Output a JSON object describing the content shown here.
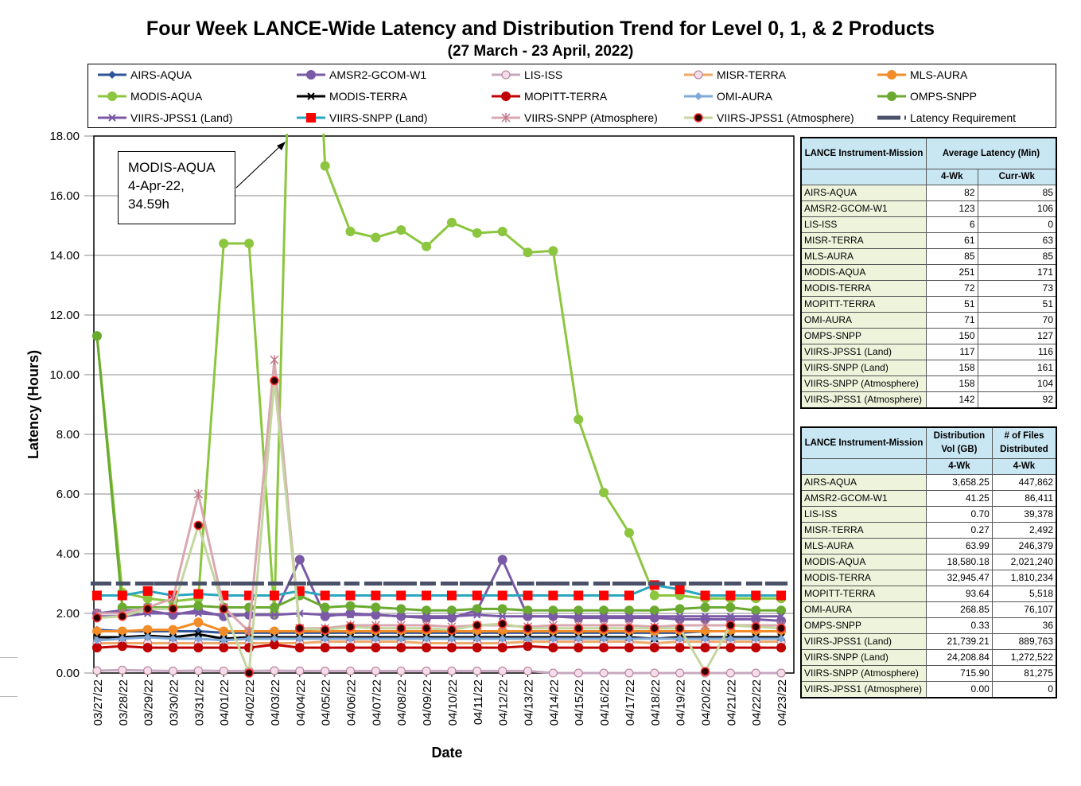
{
  "title": "Four Week LANCE-Wide Latency and Distribution Trend for Level 0, 1, & 2 Products",
  "subtitle": "(27  March   - 23  April,  2022)",
  "callout": {
    "line1": "MODIS-AQUA",
    "line2": "4-Apr-22,",
    "line3": "34.59h"
  },
  "chart_data": {
    "type": "line",
    "xlabel": "Date",
    "ylabel": "Latency (Hours)",
    "ylim": [
      0,
      18
    ],
    "yticks": [
      "0.00",
      "2.00",
      "4.00",
      "6.00",
      "8.00",
      "10.00",
      "12.00",
      "14.00",
      "16.00",
      "18.00"
    ],
    "grid": "horizontal",
    "legend_placement": "top",
    "categories": [
      "03/27/22",
      "03/28/22",
      "03/29/22",
      "03/30/22",
      "03/31/22",
      "04/01/22",
      "04/02/22",
      "04/03/22",
      "04/04/22",
      "04/05/22",
      "04/06/22",
      "04/07/22",
      "04/08/22",
      "04/09/22",
      "04/10/22",
      "04/11/22",
      "04/12/22",
      "04/13/22",
      "04/14/22",
      "04/15/22",
      "04/16/22",
      "04/17/22",
      "04/18/22",
      "04/19/22",
      "04/20/22",
      "04/21/22",
      "04/22/22",
      "04/23/22"
    ],
    "series": [
      {
        "name": "AIRS-AQUA",
        "color": "#2e5597",
        "marker": "diamond",
        "values": [
          1.45,
          1.4,
          1.4,
          1.4,
          1.4,
          1.35,
          1.35,
          1.35,
          1.35,
          1.35,
          1.35,
          1.35,
          1.35,
          1.35,
          1.35,
          1.35,
          1.35,
          1.35,
          1.35,
          1.35,
          1.35,
          1.35,
          1.35,
          1.35,
          1.4,
          1.4,
          1.4,
          1.4
        ]
      },
      {
        "name": "AMSR2-GCOM-W1",
        "color": "#7a5aa6",
        "marker": "circle",
        "values": [
          2.0,
          2.1,
          2.1,
          1.95,
          2.1,
          1.9,
          1.95,
          1.95,
          3.8,
          1.9,
          2.0,
          1.95,
          1.9,
          1.85,
          1.85,
          2.1,
          3.8,
          1.9,
          1.9,
          1.85,
          1.85,
          1.85,
          1.85,
          1.8,
          1.8,
          1.8,
          1.8,
          1.75
        ]
      },
      {
        "name": "LIS-ISS",
        "color": "#c8a8c0",
        "marker": "circle-open",
        "values": [
          0.08,
          0.1,
          0.08,
          0.07,
          0.08,
          0.07,
          0.07,
          0.08,
          0.07,
          0.07,
          0.07,
          0.07,
          0.07,
          0.07,
          0.07,
          0.07,
          0.07,
          0.07,
          0.0,
          0.0,
          0.0,
          0.0,
          0.0,
          0.0,
          0.0,
          0.0,
          0.0,
          0.0
        ]
      },
      {
        "name": "MISR-TERRA",
        "color": "#f0a868",
        "marker": "circle-open",
        "values": [
          1.0,
          1.0,
          1.0,
          1.0,
          1.0,
          1.0,
          1.0,
          1.0,
          1.0,
          1.05,
          1.05,
          1.05,
          1.05,
          1.0,
          1.0,
          1.0,
          1.0,
          1.05,
          1.05,
          1.05,
          1.05,
          1.05,
          1.0,
          1.05,
          1.05,
          1.05,
          1.05,
          1.05
        ]
      },
      {
        "name": "MLS-AURA",
        "color": "#f28c28",
        "marker": "circle",
        "values": [
          1.4,
          1.4,
          1.45,
          1.45,
          1.7,
          1.4,
          1.4,
          1.4,
          1.4,
          1.4,
          1.4,
          1.4,
          1.4,
          1.4,
          1.4,
          1.4,
          1.4,
          1.4,
          1.4,
          1.4,
          1.4,
          1.4,
          1.4,
          1.4,
          1.4,
          1.4,
          1.4,
          1.4
        ]
      },
      {
        "name": "MODIS-AQUA",
        "color": "#8cc63f",
        "marker": "circle",
        "values": [
          11.3,
          2.7,
          2.5,
          2.4,
          2.5,
          14.4,
          14.4,
          2.0,
          34.59,
          17.0,
          14.8,
          14.6,
          14.85,
          14.3,
          15.1,
          14.75,
          14.8,
          14.1,
          14.15,
          8.5,
          6.05,
          4.7,
          2.6,
          2.6,
          2.5,
          2.5,
          2.5,
          2.5
        ]
      },
      {
        "name": "MODIS-TERRA",
        "color": "#000000",
        "marker": "cross",
        "values": [
          1.2,
          1.2,
          1.25,
          1.2,
          1.3,
          1.15,
          1.2,
          1.2,
          1.2,
          1.2,
          1.2,
          1.2,
          1.2,
          1.2,
          1.2,
          1.2,
          1.2,
          1.2,
          1.2,
          1.2,
          1.2,
          1.2,
          1.15,
          1.2,
          1.2,
          1.2,
          1.2,
          1.2
        ]
      },
      {
        "name": "MOPITT-TERRA",
        "color": "#c00000",
        "marker": "circle",
        "values": [
          0.85,
          0.9,
          0.85,
          0.85,
          0.85,
          0.85,
          0.85,
          0.95,
          0.85,
          0.85,
          0.85,
          0.85,
          0.85,
          0.85,
          0.85,
          0.85,
          0.85,
          0.9,
          0.85,
          0.85,
          0.85,
          0.85,
          0.85,
          0.85,
          0.85,
          0.85,
          0.85,
          0.85
        ]
      },
      {
        "name": "OMI-AURA",
        "color": "#7fa8d8",
        "marker": "diamond",
        "values": [
          1.1,
          1.15,
          1.2,
          1.15,
          1.15,
          1.1,
          1.15,
          1.15,
          1.15,
          1.15,
          1.15,
          1.15,
          1.15,
          1.15,
          1.15,
          1.15,
          1.15,
          1.15,
          1.15,
          1.15,
          1.15,
          1.15,
          1.15,
          1.15,
          1.15,
          1.15,
          1.15,
          1.15
        ]
      },
      {
        "name": "OMPS-SNPP",
        "color": "#6aaa30",
        "marker": "circle",
        "values": [
          11.3,
          2.2,
          2.2,
          2.2,
          2.25,
          2.2,
          2.2,
          2.2,
          2.6,
          2.2,
          2.25,
          2.2,
          2.15,
          2.1,
          2.1,
          2.15,
          2.15,
          2.1,
          2.1,
          2.1,
          2.1,
          2.1,
          2.1,
          2.15,
          2.2,
          2.2,
          2.1,
          2.1
        ]
      },
      {
        "name": "VIIRS-JPSS1 (Land)",
        "color": "#7a5aa6",
        "marker": "cross",
        "values": [
          1.9,
          1.9,
          2.0,
          2.0,
          2.0,
          1.95,
          1.95,
          1.95,
          2.0,
          1.95,
          1.95,
          1.95,
          1.9,
          1.9,
          1.9,
          1.95,
          1.9,
          1.9,
          1.9,
          1.9,
          1.9,
          1.9,
          1.9,
          1.9,
          1.9,
          1.9,
          1.9,
          1.9
        ]
      },
      {
        "name": "VIIRS-SNPP (Land)",
        "color": "#2aa6c0",
        "marker": "square",
        "values": [
          2.6,
          2.6,
          2.75,
          2.6,
          2.65,
          2.6,
          2.6,
          2.6,
          2.75,
          2.6,
          2.6,
          2.6,
          2.6,
          2.6,
          2.6,
          2.6,
          2.6,
          2.6,
          2.6,
          2.6,
          2.6,
          2.6,
          2.95,
          2.8,
          2.6,
          2.6,
          2.6,
          2.6
        ]
      },
      {
        "name": "VIIRS-SNPP (Atmosphere)",
        "color": "#d9a8b0",
        "marker": "star",
        "values": [
          2.0,
          2.0,
          2.2,
          2.5,
          6.0,
          2.2,
          1.4,
          10.5,
          1.5,
          1.5,
          1.6,
          1.6,
          1.6,
          1.6,
          1.55,
          1.6,
          1.6,
          1.55,
          1.6,
          1.6,
          1.6,
          1.6,
          1.55,
          1.6,
          1.6,
          1.6,
          1.6,
          1.6
        ]
      },
      {
        "name": "VIIRS-JPSS1 (Atmosphere)",
        "color": "#c3d6a0",
        "marker": "dot-dark",
        "values": [
          1.85,
          1.9,
          2.15,
          2.15,
          4.95,
          2.15,
          0.0,
          9.8,
          1.5,
          1.45,
          1.55,
          1.5,
          1.5,
          1.5,
          1.45,
          1.6,
          1.65,
          1.5,
          1.5,
          1.5,
          1.5,
          1.5,
          1.5,
          1.5,
          0.05,
          1.6,
          1.55,
          1.5
        ]
      },
      {
        "name": "Latency Requirement",
        "color": "#4a5068",
        "marker": "dash",
        "values": [
          3.0,
          3.0,
          3.0,
          3.0,
          3.0,
          3.0,
          3.0,
          3.0,
          3.0,
          3.0,
          3.0,
          3.0,
          3.0,
          3.0,
          3.0,
          3.0,
          3.0,
          3.0,
          3.0,
          3.0,
          3.0,
          3.0,
          3.0,
          3.0,
          3.0,
          3.0,
          3.0,
          3.0
        ]
      }
    ]
  },
  "latency_table": {
    "h1": "LANCE Instrument-Mission",
    "h2": "Average Latency (Min)",
    "h3": "4-Wk",
    "h4": "Curr-Wk",
    "rows": [
      [
        "AIRS-AQUA",
        "82",
        "85"
      ],
      [
        "AMSR2-GCOM-W1",
        "123",
        "106"
      ],
      [
        "LIS-ISS",
        "6",
        "0"
      ],
      [
        "MISR-TERRA",
        "61",
        "63"
      ],
      [
        "MLS-AURA",
        "85",
        "85"
      ],
      [
        "MODIS-AQUA",
        "251",
        "171"
      ],
      [
        "MODIS-TERRA",
        "72",
        "73"
      ],
      [
        "MOPITT-TERRA",
        "51",
        "51"
      ],
      [
        "OMI-AURA",
        "71",
        "70"
      ],
      [
        "OMPS-SNPP",
        "150",
        "127"
      ],
      [
        "VIIRS-JPSS1 (Land)",
        "117",
        "116"
      ],
      [
        "VIIRS-SNPP (Land)",
        "158",
        "161"
      ],
      [
        "VIIRS-SNPP (Atmosphere)",
        "158",
        "104"
      ],
      [
        "VIIRS-JPSS1 (Atmosphere)",
        "142",
        "92"
      ]
    ]
  },
  "distribution_table": {
    "h1": "LANCE Instrument-Mission",
    "h2": "Distribution Vol (GB)",
    "h3": "# of Files Distributed",
    "h4": "4-Wk",
    "h5": "4-Wk",
    "rows": [
      [
        "AIRS-AQUA",
        "3,658.25",
        "447,862"
      ],
      [
        "AMSR2-GCOM-W1",
        "41.25",
        "86,411"
      ],
      [
        "LIS-ISS",
        "0.70",
        "39,378"
      ],
      [
        "MISR-TERRA",
        "0.27",
        "2,492"
      ],
      [
        "MLS-AURA",
        "63.99",
        "246,379"
      ],
      [
        "MODIS-AQUA",
        "18,580.18",
        "2,021,240"
      ],
      [
        "MODIS-TERRA",
        "32,945.47",
        "1,810,234"
      ],
      [
        "MOPITT-TERRA",
        "93.64",
        "5,518"
      ],
      [
        "OMI-AURA",
        "268.85",
        "76,107"
      ],
      [
        "OMPS-SNPP",
        "0.33",
        "36"
      ],
      [
        "VIIRS-JPSS1 (Land)",
        "21,739.21",
        "889,763"
      ],
      [
        "VIIRS-SNPP (Land)",
        "24,208.84",
        "1,272,522"
      ],
      [
        "VIIRS-SNPP (Atmosphere)",
        "715.90",
        "81,275"
      ],
      [
        "VIIRS-JPSS1 (Atmosphere)",
        "0.00",
        "0"
      ]
    ]
  }
}
